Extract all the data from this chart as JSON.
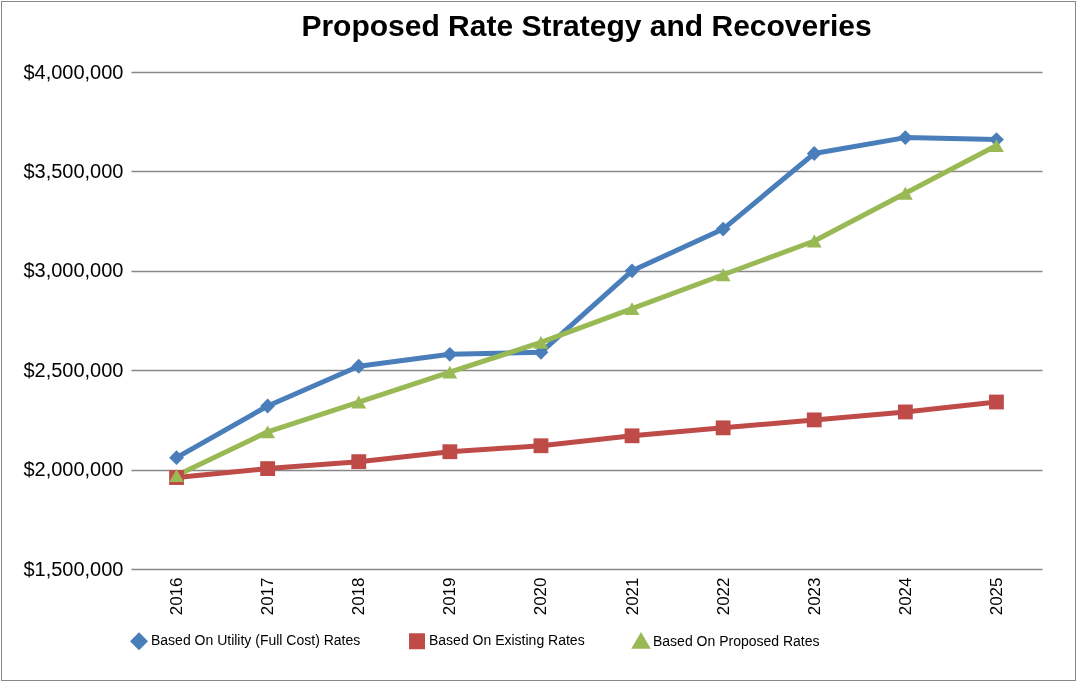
{
  "chart_data": {
    "type": "line",
    "title": "Proposed Rate Strategy and Recoveries",
    "categories": [
      "2016",
      "2017",
      "2018",
      "2019",
      "2020",
      "2021",
      "2022",
      "2023",
      "2024",
      "2025"
    ],
    "series": [
      {
        "name": "Based On Utility (Full Cost) Rates",
        "color": "#4a7ebb",
        "marker": "diamond",
        "values": [
          2060000,
          2320000,
          2520000,
          2580000,
          2590000,
          3000000,
          3210000,
          3590000,
          3670000,
          3660000
        ]
      },
      {
        "name": "Based On Existing Rates",
        "color": "#be4b48",
        "marker": "square",
        "values": [
          1960000,
          2005000,
          2040000,
          2090000,
          2120000,
          2170000,
          2210000,
          2250000,
          2290000,
          2340000
        ]
      },
      {
        "name": "Based On Proposed Rates",
        "color": "#98b954",
        "marker": "triangle",
        "values": [
          1970000,
          2190000,
          2340000,
          2490000,
          2640000,
          2810000,
          2980000,
          3150000,
          3390000,
          3630000
        ]
      }
    ],
    "ylim": [
      1500000,
      4000000
    ],
    "yticks": [
      {
        "value": 1500000,
        "label": "$1,500,000"
      },
      {
        "value": 2000000,
        "label": "$2,000,000"
      },
      {
        "value": 2500000,
        "label": "$2,500,000"
      },
      {
        "value": 3000000,
        "label": "$3,000,000"
      },
      {
        "value": 3500000,
        "label": "$3,500,000"
      },
      {
        "value": 4000000,
        "label": "$4,000,000"
      }
    ],
    "grid": "y",
    "legend": "bottom",
    "line_style": "solid"
  }
}
